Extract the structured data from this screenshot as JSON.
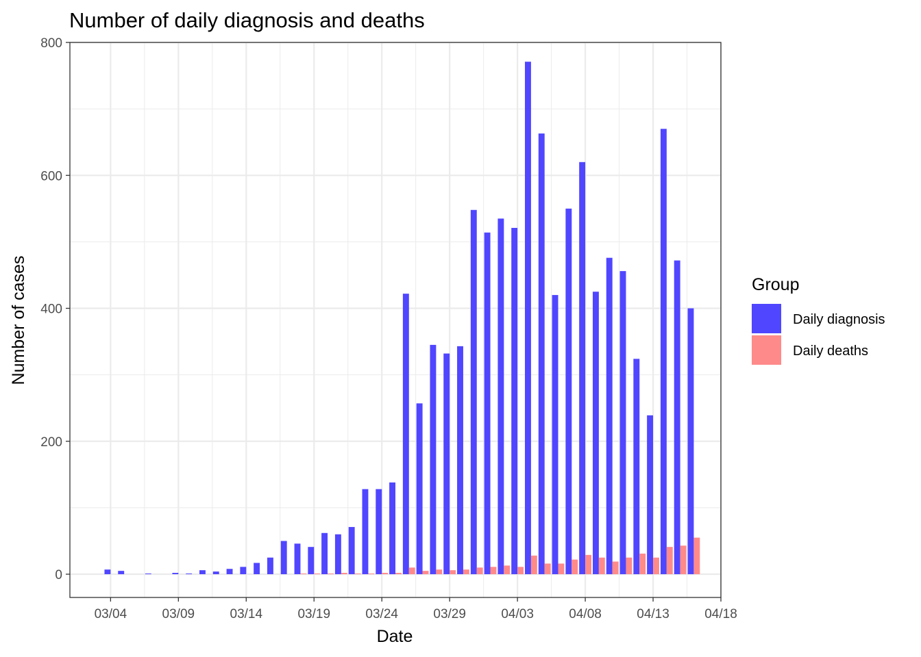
{
  "chart_data": {
    "type": "bar",
    "title": "Number of daily diagnosis and deaths",
    "xlabel": "Date",
    "ylabel": "Number of cases",
    "ylim": [
      -35,
      800
    ],
    "y_ticks": [
      0,
      200,
      400,
      600,
      800
    ],
    "x_tick_labels": [
      "03/04",
      "03/09",
      "03/14",
      "03/19",
      "03/24",
      "03/29",
      "04/03",
      "04/08",
      "04/13",
      "04/18"
    ],
    "x_tick_dates": [
      "2020-03-04",
      "2020-03-09",
      "2020-03-14",
      "2020-03-19",
      "2020-03-24",
      "2020-03-29",
      "2020-04-03",
      "2020-04-08",
      "2020-04-13",
      "2020-04-18"
    ],
    "x_range": [
      "2020-03-01",
      "2020-04-18"
    ],
    "grid": true,
    "legend": {
      "title": "Group",
      "position": "right"
    },
    "x": [
      "2020-03-04",
      "2020-03-05",
      "2020-03-06",
      "2020-03-07",
      "2020-03-08",
      "2020-03-09",
      "2020-03-10",
      "2020-03-11",
      "2020-03-12",
      "2020-03-13",
      "2020-03-14",
      "2020-03-15",
      "2020-03-16",
      "2020-03-17",
      "2020-03-18",
      "2020-03-19",
      "2020-03-20",
      "2020-03-21",
      "2020-03-22",
      "2020-03-23",
      "2020-03-24",
      "2020-03-25",
      "2020-03-26",
      "2020-03-27",
      "2020-03-28",
      "2020-03-29",
      "2020-03-30",
      "2020-03-31",
      "2020-04-01",
      "2020-04-02",
      "2020-04-03",
      "2020-04-04",
      "2020-04-05",
      "2020-04-06",
      "2020-04-07",
      "2020-04-08",
      "2020-04-09",
      "2020-04-10",
      "2020-04-11",
      "2020-04-12",
      "2020-04-13",
      "2020-04-14",
      "2020-04-15",
      "2020-04-16"
    ],
    "series": [
      {
        "name": "Daily diagnosis",
        "color": "#5046FF",
        "values": [
          7,
          5,
          0,
          1,
          0,
          2,
          1,
          6,
          4,
          8,
          11,
          17,
          25,
          50,
          46,
          41,
          62,
          60,
          71,
          128,
          128,
          138,
          422,
          257,
          345,
          332,
          343,
          548,
          514,
          535,
          521,
          771,
          663,
          420,
          550,
          620,
          425,
          476,
          456,
          324,
          239,
          670,
          472,
          400
        ]
      },
      {
        "name": "Daily deaths",
        "color": "#FF8A8A",
        "values": [
          0,
          0,
          0,
          0,
          0,
          0,
          0,
          0,
          0,
          0,
          0,
          0,
          0,
          0,
          1,
          1,
          1,
          2,
          1,
          1,
          2,
          2,
          10,
          5,
          7,
          6,
          7,
          10,
          11,
          13,
          11,
          28,
          16,
          16,
          22,
          29,
          25,
          19,
          25,
          31,
          25,
          41,
          43,
          55
        ]
      }
    ]
  }
}
